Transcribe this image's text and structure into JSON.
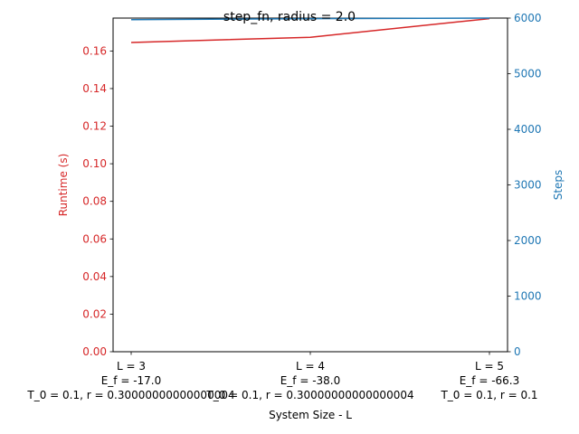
{
  "chart_data": {
    "type": "line",
    "title": "step_fn, radius = 2.0",
    "xlabel": "System Size - L",
    "categories": [
      [
        "L = 3",
        "E_f = -17.0",
        "T_0 = 0.1, r = 0.30000000000000004"
      ],
      [
        "L = 4",
        "E_f = -38.0",
        "T_0 = 0.1, r = 0.30000000000000004"
      ],
      [
        "L = 5",
        "E_f = -66.3",
        "T_0 = 0.1, r = 0.1"
      ]
    ],
    "y_left": {
      "label": "Runtime (s)",
      "ylim": [
        0,
        0.1775
      ],
      "ticks": [
        "0.00",
        "0.02",
        "0.04",
        "0.06",
        "0.08",
        "0.10",
        "0.12",
        "0.14",
        "0.16"
      ],
      "color": "#d62728"
    },
    "y_right": {
      "label": "Steps",
      "ylim": [
        0,
        6000
      ],
      "ticks": [
        "0",
        "1000",
        "2000",
        "3000",
        "4000",
        "5000",
        "6000"
      ],
      "color": "#1f77b4"
    },
    "series": [
      {
        "axis": "left",
        "color": "#d62728",
        "values": [
          0.1645,
          0.1673,
          0.1772
        ]
      },
      {
        "axis": "right",
        "color": "#1f77b4",
        "values": [
          5970,
          5990,
          6000
        ]
      }
    ],
    "grid": false,
    "legend": "none"
  }
}
